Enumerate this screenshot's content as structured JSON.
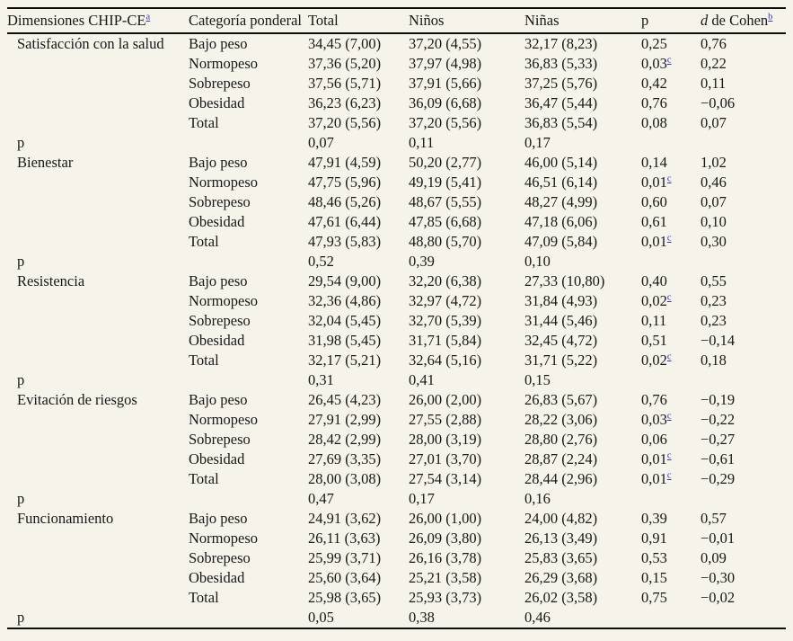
{
  "table": {
    "columns": [
      {
        "key": "dimensions",
        "text": "Dimensiones CHIP-CE",
        "sup": "a"
      },
      {
        "key": "weight-category",
        "text": "Categoría ponderal"
      },
      {
        "key": "total",
        "text": "Total"
      },
      {
        "key": "boys",
        "text": "Niños"
      },
      {
        "key": "girls",
        "text": "Niñas"
      },
      {
        "key": "p",
        "text": "p"
      },
      {
        "key": "cohen-d",
        "italic": "d",
        "text": " de Cohen",
        "sup": "b"
      }
    ],
    "p_row_label": "p",
    "sections": [
      {
        "dimension": "Satisfacción con la salud",
        "rows": [
          {
            "category": "Bajo peso",
            "total": "34,45 (7,00)",
            "boys": "37,20 (4,55)",
            "girls": "32,17 (8,23)",
            "p": "0,25",
            "p_sup": "",
            "d": "0,76"
          },
          {
            "category": "Normopeso",
            "total": "37,36 (5,20)",
            "boys": "37,97 (4,98)",
            "girls": "36,83 (5,33)",
            "p": "0,03",
            "p_sup": "c",
            "d": "0,22"
          },
          {
            "category": "Sobrepeso",
            "total": "37,56 (5,71)",
            "boys": "37,91 (5,66)",
            "girls": "37,25 (5,76)",
            "p": "0,42",
            "p_sup": "",
            "d": "0,11"
          },
          {
            "category": "Obesidad",
            "total": "36,23 (6,23)",
            "boys": "36,09 (6,68)",
            "girls": "36,47 (5,44)",
            "p": "0,76",
            "p_sup": "",
            "d": "−0,06"
          },
          {
            "category": "Total",
            "total": "37,20 (5,56)",
            "boys": "37,20 (5,56)",
            "girls": "36,83 (5,54)",
            "p": "0,08",
            "p_sup": "",
            "d": "0,07"
          }
        ],
        "p_row": {
          "total": "0,07",
          "boys": "0,11",
          "girls": "0,17"
        }
      },
      {
        "dimension": "Bienestar",
        "rows": [
          {
            "category": "Bajo peso",
            "total": "47,91 (4,59)",
            "boys": "50,20 (2,77)",
            "girls": "46,00 (5,14)",
            "p": "0,14",
            "p_sup": "",
            "d": "1,02"
          },
          {
            "category": "Normopeso",
            "total": "47,75 (5,96)",
            "boys": "49,19 (5,41)",
            "girls": "46,51 (6,14)",
            "p": "0,01",
            "p_sup": "c",
            "d": "0,46"
          },
          {
            "category": "Sobrepeso",
            "total": "48,46 (5,26)",
            "boys": "48,67 (5,55)",
            "girls": "48,27 (4,99)",
            "p": "0,60",
            "p_sup": "",
            "d": "0,07"
          },
          {
            "category": "Obesidad",
            "total": "47,61 (6,44)",
            "boys": "47,85 (6,68)",
            "girls": "47,18 (6,06)",
            "p": "0,61",
            "p_sup": "",
            "d": "0,10"
          },
          {
            "category": "Total",
            "total": "47,93 (5,83)",
            "boys": "48,80 (5,70)",
            "girls": "47,09 (5,84)",
            "p": "0,01",
            "p_sup": "c",
            "d": "0,30"
          }
        ],
        "p_row": {
          "total": "0,52",
          "boys": "0,39",
          "girls": "0,10"
        }
      },
      {
        "dimension": "Resistencia",
        "rows": [
          {
            "category": "Bajo peso",
            "total": "29,54 (9,00)",
            "boys": "32,20 (6,38)",
            "girls": "27,33 (10,80)",
            "p": "0,40",
            "p_sup": "",
            "d": "0,55"
          },
          {
            "category": "Normopeso",
            "total": "32,36 (4,86)",
            "boys": "32,97 (4,72)",
            "girls": "31,84 (4,93)",
            "p": "0,02",
            "p_sup": "c",
            "d": "0,23"
          },
          {
            "category": "Sobrepeso",
            "total": "32,04 (5,45)",
            "boys": "32,70 (5,39)",
            "girls": "31,44 (5,46)",
            "p": "0,11",
            "p_sup": "",
            "d": "0,23"
          },
          {
            "category": "Obesidad",
            "total": "31,98 (5,45)",
            "boys": "31,71 (5,84)",
            "girls": "32,45 (4,72)",
            "p": "0,51",
            "p_sup": "",
            "d": "−0,14"
          },
          {
            "category": "Total",
            "total": "32,17 (5,21)",
            "boys": "32,64 (5,16)",
            "girls": "31,71 (5,22)",
            "p": "0,02",
            "p_sup": "c",
            "d": "0,18"
          }
        ],
        "p_row": {
          "total": "0,31",
          "boys": "0,41",
          "girls": "0,15"
        }
      },
      {
        "dimension": "Evitación de riesgos",
        "rows": [
          {
            "category": "Bajo peso",
            "total": "26,45 (4,23)",
            "boys": "26,00 (2,00)",
            "girls": "26,83 (5,67)",
            "p": "0,76",
            "p_sup": "",
            "d": "−0,19"
          },
          {
            "category": "Normopeso",
            "total": "27,91 (2,99)",
            "boys": "27,55 (2,88)",
            "girls": "28,22 (3,06)",
            "p": "0,03",
            "p_sup": "c",
            "d": "−0,22"
          },
          {
            "category": "Sobrepeso",
            "total": "28,42 (2,99)",
            "boys": "28,00 (3,19)",
            "girls": "28,80 (2,76)",
            "p": "0,06",
            "p_sup": "",
            "d": "−0,27"
          },
          {
            "category": "Obesidad",
            "total": "27,69 (3,35)",
            "boys": "27,01 (3,70)",
            "girls": "28,87 (2,24)",
            "p": "0,01",
            "p_sup": "c",
            "d": "−0,61"
          },
          {
            "category": "Total",
            "total": "28,00 (3,08)",
            "boys": "27,54 (3,14)",
            "girls": "28,44 (2,96)",
            "p": "0,01",
            "p_sup": "c",
            "d": "−0,29"
          }
        ],
        "p_row": {
          "total": "0,47",
          "boys": "0,17",
          "girls": "0,16"
        }
      },
      {
        "dimension": "Funcionamiento",
        "rows": [
          {
            "category": "Bajo peso",
            "total": "24,91 (3,62)",
            "boys": "26,00 (1,00)",
            "girls": "24,00 (4,82)",
            "p": "0,39",
            "p_sup": "",
            "d": "0,57"
          },
          {
            "category": "Normopeso",
            "total": "26,11 (3,63)",
            "boys": "26,09 (3,80)",
            "girls": "26,13 (3,49)",
            "p": "0,91",
            "p_sup": "",
            "d": "−0,01"
          },
          {
            "category": "Sobrepeso",
            "total": "25,99 (3,71)",
            "boys": "26,16 (3,78)",
            "girls": "25,83 (3,65)",
            "p": "0,53",
            "p_sup": "",
            "d": "0,09"
          },
          {
            "category": "Obesidad",
            "total": "25,60 (3,64)",
            "boys": "25,21 (3,58)",
            "girls": "26,29 (3,68)",
            "p": "0,15",
            "p_sup": "",
            "d": "−0,30"
          },
          {
            "category": "Total",
            "total": "25,98 (3,65)",
            "boys": "25,93 (3,73)",
            "girls": "26,02 (3,58)",
            "p": "0,75",
            "p_sup": "",
            "d": "−0,02"
          }
        ],
        "p_row": {
          "total": "0,05",
          "boys": "0,38",
          "girls": "0,46"
        }
      }
    ],
    "colors": {
      "background": "#f6f3ea",
      "text": "#181818",
      "rule": "#0d0d0d",
      "footnote_link": "#3434c8"
    }
  }
}
